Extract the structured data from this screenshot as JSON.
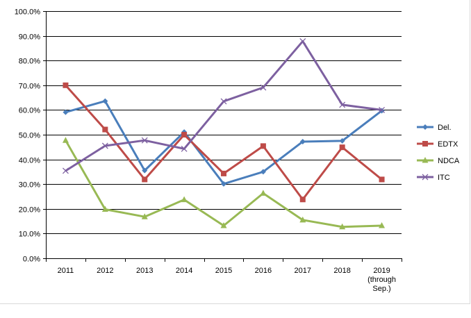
{
  "chart_data": {
    "type": "line",
    "title": "",
    "xlabel": "",
    "ylabel": "",
    "categories": [
      "2011",
      "2012",
      "2013",
      "2014",
      "2015",
      "2016",
      "2017",
      "2018",
      "2019 (through Sep.)"
    ],
    "category_lines": [
      [
        "2011"
      ],
      [
        "2012"
      ],
      [
        "2013"
      ],
      [
        "2014"
      ],
      [
        "2015"
      ],
      [
        "2016"
      ],
      [
        "2017"
      ],
      [
        "2018"
      ],
      [
        "2019",
        "(through",
        "Sep.)"
      ]
    ],
    "yticks": [
      "0.0%",
      "10.0%",
      "20.0%",
      "30.0%",
      "40.0%",
      "50.0%",
      "60.0%",
      "70.0%",
      "80.0%",
      "90.0%",
      "100.0%"
    ],
    "ylim": [
      0,
      100
    ],
    "grid": true,
    "legend_position": "right",
    "series": [
      {
        "name": "Del.",
        "color": "#4a7ebb",
        "marker": "diamond",
        "values": [
          59.1,
          63.6,
          35.5,
          51.1,
          30.1,
          35.0,
          47.2,
          47.5,
          59.7
        ]
      },
      {
        "name": "EDTX",
        "color": "#be4b48",
        "marker": "square",
        "values": [
          70.0,
          52.1,
          31.9,
          50.0,
          34.3,
          45.4,
          23.8,
          44.9,
          31.9
        ]
      },
      {
        "name": "NDCA",
        "color": "#98b954",
        "marker": "triangle",
        "values": [
          47.7,
          19.8,
          16.8,
          23.7,
          13.2,
          26.3,
          15.5,
          12.7,
          13.2
        ]
      },
      {
        "name": "ITC",
        "color": "#7d60a0",
        "marker": "x",
        "values": [
          35.4,
          45.5,
          47.7,
          44.3,
          63.5,
          69.1,
          87.8,
          62.1,
          60.0
        ]
      }
    ]
  }
}
